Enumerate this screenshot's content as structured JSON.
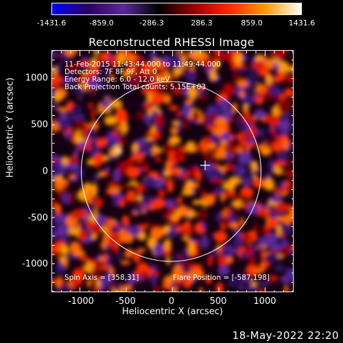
{
  "colorbar": {
    "ticks": [
      "-1431.6",
      "-859.0",
      "-286.3",
      "286.3",
      "859.0",
      "1431.6"
    ]
  },
  "title": "Reconstructed RHESSI Image",
  "info": {
    "line1": "11-Feb-2015 11:43:44.000 to 11:49:44.000",
    "line2": "Detectors: 7F 8F 9F, Att 0",
    "line3": "Energy Range: 6.0 - 12.0 keV",
    "line4": "Back Projection    Total counts: 5.15E+03"
  },
  "spin_axis": "Spin Axis = [358,31]",
  "flare_position": "Flare Position = [-587,198]",
  "y_ticks": [
    "1000",
    "500",
    "0",
    "-500",
    "-1000"
  ],
  "x_ticks": [
    "-1000",
    "-500",
    "0",
    "500",
    "1000"
  ],
  "xlabel": "Heliocentric X (arcsec)",
  "ylabel": "Heliocentric Y (arcsec)",
  "timestamp": "18-May-2022 22:20",
  "colors": {
    "background": "#000000",
    "colormap": [
      "#0000ff",
      "#2a0060",
      "#5b2a9a",
      "#000000",
      "#9a0000",
      "#ff2a00",
      "#ff9a00",
      "#ffffff"
    ]
  }
}
